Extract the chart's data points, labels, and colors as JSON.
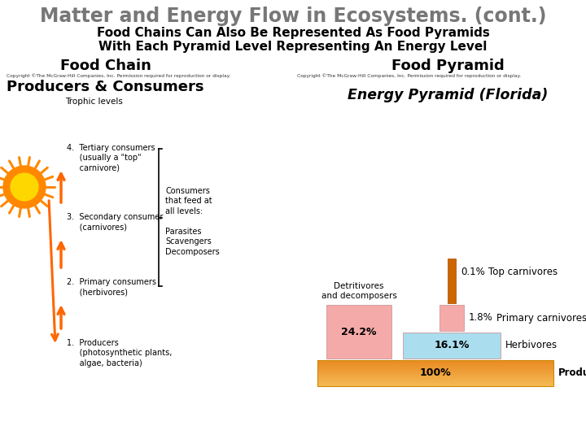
{
  "title": "Matter and Energy Flow in Ecosystems. (cont.)",
  "subtitle1": "Food Chains Can Also Be Represented As Food Pyramids",
  "subtitle2": "With Each Pyramid Level Representing An Energy Level",
  "left_heading": "Food Chain",
  "right_heading": "Food Pyramid",
  "copyright_left": "Copyright ©The McGraw-Hill Companies, Inc. Permission required for reproduction or display.",
  "copyright_right": "Copyright ©The McGraw-Hill Companies, Inc. Permission required for reproduction or display.",
  "left_title": "Producers & Consumers",
  "trophic_label": "Trophic levels",
  "consumers_label": "Consumers\nthat feed at\nall levels:",
  "consumers_items": "Parasites\nScavengers\nDecomposers",
  "right_chart_title": "Energy Pyramid (Florida)",
  "pyramid_labels": [
    "Producers",
    "Herbivores",
    "Primary carnivores",
    "Top carnivores"
  ],
  "pyramid_pcts": [
    "100%",
    "16.1%",
    "1.8%",
    "0.1%"
  ],
  "detritivores_label": "Detritivores\nand decomposers",
  "detritivores_pct": "24.2%",
  "title_color": "#777777",
  "subtitle_color": "#111111",
  "orange_arrow": "#FF6600",
  "sun_outer": "#FF8800",
  "sun_inner": "#FFD700",
  "pink_color": "#F5AAAA",
  "light_blue_color": "#AADDEE",
  "tan_color_light": "#F5C87A",
  "tan_color_dark": "#E8983A",
  "spike_color": "#CC6600"
}
